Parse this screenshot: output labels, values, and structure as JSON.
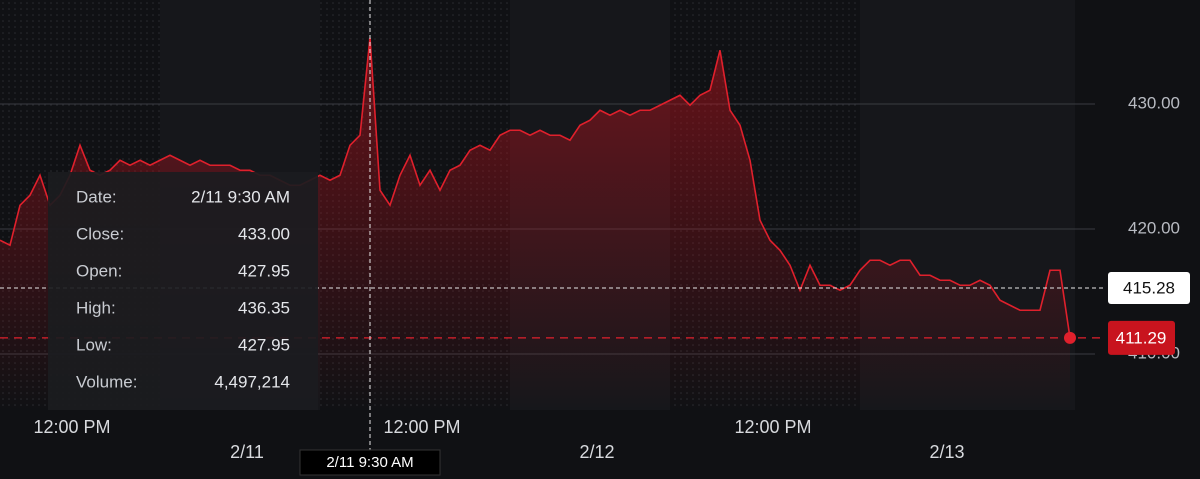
{
  "chart_data": {
    "type": "line",
    "color": "#e0202c",
    "ylim": [
      405.52,
      438.32
    ],
    "yticks": [
      {
        "value": 430,
        "label": "430.00"
      },
      {
        "value": 420,
        "label": "420.00"
      },
      {
        "value": 410,
        "label": "410.00"
      }
    ],
    "grid": true,
    "values": [
      419.1,
      418.7,
      421.9,
      422.7,
      424.3,
      421.9,
      422.7,
      424.3,
      426.7,
      424.7,
      424.3,
      424.7,
      425.5,
      425.1,
      425.5,
      425.1,
      425.5,
      425.9,
      425.5,
      425.1,
      425.5,
      425.1,
      425.1,
      425.1,
      424.7,
      424.7,
      424.3,
      424.3,
      423.9,
      423.5,
      423.5,
      423.9,
      424.3,
      423.9,
      424.3,
      426.7,
      427.5,
      435.3,
      423.1,
      421.9,
      424.3,
      425.9,
      423.5,
      424.7,
      423.1,
      424.7,
      425.1,
      426.3,
      426.7,
      426.3,
      427.5,
      427.9,
      427.9,
      427.5,
      427.9,
      427.5,
      427.5,
      427.1,
      428.3,
      428.7,
      429.5,
      429.1,
      429.5,
      429.1,
      429.5,
      429.5,
      429.9,
      430.3,
      430.7,
      429.9,
      430.7,
      431.1,
      434.3,
      429.5,
      428.3,
      425.5,
      420.7,
      419.1,
      418.3,
      417.1,
      415.1,
      417.1,
      415.5,
      415.5,
      415.1,
      415.5,
      416.7,
      417.5,
      417.5,
      417.1,
      417.5,
      417.5,
      416.3,
      416.3,
      415.9,
      415.9,
      415.5,
      415.5,
      415.9,
      415.5,
      414.3,
      413.9,
      413.5,
      413.5,
      413.5,
      416.7,
      416.7,
      411.29
    ],
    "time_labels": [
      "12:00 PM",
      "12:00 PM",
      "12:00 PM"
    ],
    "date_labels": [
      "2/11",
      "2/12",
      "2/13"
    ],
    "crosshair": {
      "value": 415.28,
      "label": "415.28",
      "time": "2/11 9:30 AM"
    },
    "last_price": 411.29,
    "tooltip": [
      [
        "Date:",
        "2/11 9:30 AM"
      ],
      [
        "Close:",
        "433.00"
      ],
      [
        "Open:",
        "427.95"
      ],
      [
        "High:",
        "436.35"
      ],
      [
        "Low:",
        "427.95"
      ],
      [
        "Volume:",
        "4,497,214"
      ]
    ]
  }
}
